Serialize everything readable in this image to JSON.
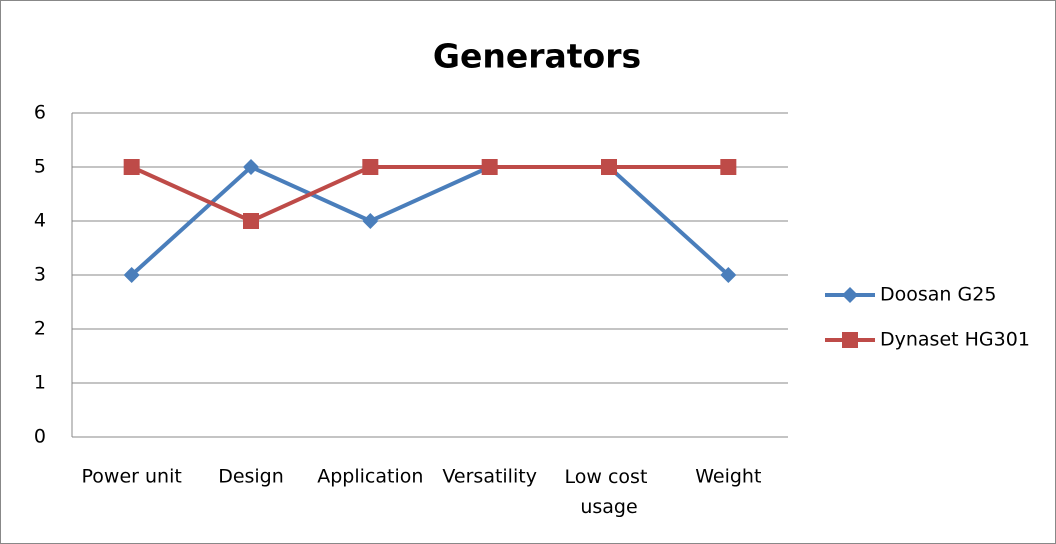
{
  "chart_data": {
    "type": "line",
    "title": "Generators",
    "categories": [
      "Power unit",
      "Design",
      "Application",
      "Versatility",
      "Low cost usage",
      "Weight"
    ],
    "series": [
      {
        "name": "Doosan G25",
        "color": "#4a7ebb",
        "marker": "diamond",
        "values": [
          3,
          5,
          4,
          5,
          5,
          3
        ]
      },
      {
        "name": "Dynaset HG301",
        "color": "#be4b48",
        "marker": "square",
        "values": [
          5,
          4,
          5,
          5,
          5,
          5
        ]
      }
    ],
    "ylim": [
      0,
      6
    ],
    "yticks": [
      0,
      1,
      2,
      3,
      4,
      5,
      6
    ],
    "grid": true,
    "legend": "right"
  }
}
